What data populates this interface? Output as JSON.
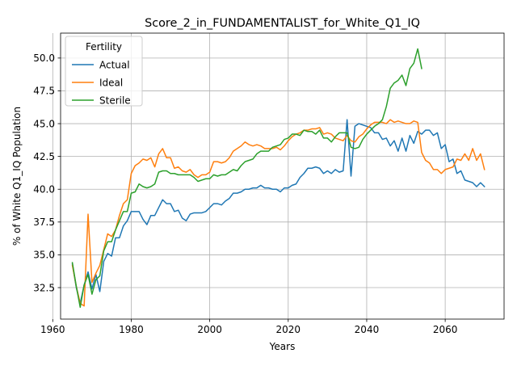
{
  "chart_data": {
    "type": "line",
    "title": "Score_2_in_FUNDAMENTALIST_for_White_Q1_IQ",
    "xlabel": "Years",
    "ylabel": "% of White Q1_IQ Population",
    "xlim": [
      1962,
      2075
    ],
    "ylim": [
      30.1,
      51.9
    ],
    "x_ticks": [
      1960,
      1980,
      2000,
      2020,
      2040,
      2060
    ],
    "y_ticks": [
      32.5,
      35.0,
      37.5,
      40.0,
      42.5,
      45.0,
      47.5,
      50.0
    ],
    "grid": true,
    "legend": {
      "title": "Fertility",
      "placement": "upper-left"
    },
    "series": [
      {
        "name": "Actual",
        "color": "#1f77b4",
        "x": [
          1965,
          1966,
          1967,
          1968,
          1969,
          1970,
          1971,
          1972,
          1973,
          1974,
          1975,
          1976,
          1977,
          1978,
          1979,
          1980,
          1981,
          1982,
          1983,
          1984,
          1985,
          1986,
          1987,
          1988,
          1989,
          1990,
          1991,
          1992,
          1993,
          1994,
          1995,
          1996,
          1997,
          1998,
          1999,
          2000,
          2001,
          2002,
          2003,
          2004,
          2005,
          2006,
          2007,
          2008,
          2009,
          2010,
          2011,
          2012,
          2013,
          2014,
          2015,
          2016,
          2017,
          2018,
          2019,
          2020,
          2021,
          2022,
          2023,
          2024,
          2025,
          2026,
          2027,
          2028,
          2029,
          2030,
          2031,
          2032,
          2033,
          2034,
          2035,
          2036,
          2037,
          2038,
          2039,
          2040,
          2041,
          2042,
          2043,
          2044,
          2045,
          2046,
          2047,
          2048,
          2049,
          2050,
          2051,
          2052,
          2053,
          2054,
          2055,
          2056,
          2057,
          2058,
          2059,
          2060,
          2061,
          2062,
          2063,
          2064,
          2065,
          2066,
          2067,
          2068,
          2069,
          2070
        ],
        "y": [
          34.3,
          32.5,
          31.3,
          32.7,
          33.7,
          32.4,
          33.5,
          32.2,
          34.5,
          35.1,
          34.9,
          36.3,
          36.3,
          37.2,
          37.6,
          38.3,
          38.3,
          38.3,
          37.7,
          37.3,
          38.0,
          38.0,
          38.6,
          39.2,
          38.9,
          38.9,
          38.3,
          38.4,
          37.8,
          37.6,
          38.1,
          38.2,
          38.2,
          38.2,
          38.3,
          38.6,
          38.9,
          38.9,
          38.8,
          39.1,
          39.3,
          39.7,
          39.7,
          39.8,
          40.0,
          40.0,
          40.1,
          40.1,
          40.3,
          40.1,
          40.1,
          40.0,
          40.0,
          39.8,
          40.1,
          40.1,
          40.3,
          40.4,
          40.9,
          41.2,
          41.6,
          41.6,
          41.7,
          41.6,
          41.2,
          41.4,
          41.2,
          41.5,
          41.3,
          41.4,
          45.3,
          41.0,
          44.8,
          45.0,
          44.9,
          44.8,
          44.7,
          44.3,
          44.3,
          43.8,
          43.9,
          43.3,
          43.7,
          42.9,
          43.9,
          42.9,
          44.1,
          43.5,
          44.4,
          44.2,
          44.5,
          44.5,
          44.1,
          44.3,
          43.1,
          43.4,
          42.1,
          42.3,
          41.2,
          41.4,
          40.7,
          40.6,
          40.5,
          40.2,
          40.5,
          40.2
        ]
      },
      {
        "name": "Ideal",
        "color": "#ff7f0e",
        "x": [
          1965,
          1966,
          1967,
          1968,
          1969,
          1970,
          1971,
          1972,
          1973,
          1974,
          1975,
          1976,
          1977,
          1978,
          1979,
          1980,
          1981,
          1982,
          1983,
          1984,
          1985,
          1986,
          1987,
          1988,
          1989,
          1990,
          1991,
          1992,
          1993,
          1994,
          1995,
          1996,
          1997,
          1998,
          1999,
          2000,
          2001,
          2002,
          2003,
          2004,
          2005,
          2006,
          2007,
          2008,
          2009,
          2010,
          2011,
          2012,
          2013,
          2014,
          2015,
          2016,
          2017,
          2018,
          2019,
          2020,
          2021,
          2022,
          2023,
          2024,
          2025,
          2026,
          2027,
          2028,
          2029,
          2030,
          2031,
          2032,
          2033,
          2034,
          2035,
          2036,
          2037,
          2038,
          2039,
          2040,
          2041,
          2042,
          2043,
          2044,
          2045,
          2046,
          2047,
          2048,
          2049,
          2050,
          2051,
          2052,
          2053,
          2054,
          2055,
          2056,
          2057,
          2058,
          2059,
          2060,
          2061,
          2062,
          2063,
          2064,
          2065,
          2066,
          2067,
          2068,
          2069,
          2070
        ],
        "y": [
          34.2,
          32.6,
          31.3,
          31.1,
          38.1,
          32.9,
          33.6,
          34.2,
          35.4,
          36.6,
          36.4,
          36.9,
          38.0,
          38.9,
          39.2,
          41.2,
          41.8,
          42.0,
          42.3,
          42.2,
          42.4,
          41.7,
          42.7,
          43.1,
          42.4,
          42.4,
          41.6,
          41.7,
          41.4,
          41.3,
          41.5,
          41.1,
          40.9,
          41.1,
          41.1,
          41.3,
          42.1,
          42.1,
          42.0,
          42.1,
          42.4,
          42.9,
          43.1,
          43.3,
          43.6,
          43.4,
          43.3,
          43.4,
          43.3,
          43.1,
          43.1,
          43.1,
          43.2,
          43.0,
          43.3,
          43.7,
          44.0,
          44.2,
          44.3,
          44.5,
          44.5,
          44.6,
          44.6,
          44.7,
          44.2,
          44.3,
          44.2,
          43.9,
          43.8,
          43.7,
          44.1,
          43.7,
          43.6,
          44.0,
          44.2,
          44.6,
          44.9,
          45.1,
          45.1,
          45.1,
          45.0,
          45.3,
          45.1,
          45.2,
          45.1,
          45.0,
          45.0,
          45.2,
          45.1,
          42.8,
          42.2,
          42.0,
          41.5,
          41.5,
          41.2,
          41.5,
          41.6,
          41.7,
          42.3,
          42.2,
          42.7,
          42.2,
          43.1,
          42.2,
          42.7,
          41.5
        ]
      },
      {
        "name": "Sterile",
        "color": "#2ca02c",
        "x": [
          1965,
          1966,
          1967,
          1968,
          1969,
          1970,
          1971,
          1972,
          1973,
          1974,
          1975,
          1976,
          1977,
          1978,
          1979,
          1980,
          1981,
          1982,
          1983,
          1984,
          1985,
          1986,
          1987,
          1988,
          1989,
          1990,
          1991,
          1992,
          1993,
          1994,
          1995,
          1996,
          1997,
          1998,
          1999,
          2000,
          2001,
          2002,
          2003,
          2004,
          2005,
          2006,
          2007,
          2008,
          2009,
          2010,
          2011,
          2012,
          2013,
          2014,
          2015,
          2016,
          2017,
          2018,
          2019,
          2020,
          2021,
          2022,
          2023,
          2024,
          2025,
          2026,
          2027,
          2028,
          2029,
          2030,
          2031,
          2032,
          2033,
          2034,
          2035,
          2036,
          2037,
          2038,
          2039,
          2040,
          2041,
          2042,
          2043,
          2044,
          2045,
          2046,
          2047,
          2048,
          2049,
          2050,
          2051,
          2052,
          2053,
          2054
        ],
        "y": [
          34.4,
          32.6,
          31.0,
          32.7,
          33.5,
          32.0,
          33.1,
          33.4,
          35.3,
          36.0,
          36.0,
          36.9,
          37.6,
          38.3,
          38.3,
          39.7,
          39.8,
          40.4,
          40.2,
          40.1,
          40.2,
          40.4,
          41.3,
          41.4,
          41.4,
          41.2,
          41.2,
          41.1,
          41.1,
          41.1,
          41.1,
          40.9,
          40.6,
          40.7,
          40.8,
          40.8,
          41.1,
          41.0,
          41.1,
          41.1,
          41.3,
          41.5,
          41.4,
          41.8,
          42.1,
          42.2,
          42.3,
          42.7,
          42.9,
          42.9,
          42.9,
          43.2,
          43.3,
          43.4,
          43.8,
          43.9,
          44.2,
          44.2,
          44.1,
          44.5,
          44.4,
          44.4,
          44.2,
          44.5,
          43.9,
          43.9,
          43.6,
          44.0,
          44.3,
          44.3,
          44.3,
          43.2,
          43.1,
          43.2,
          43.8,
          44.2,
          44.5,
          44.8,
          45.0,
          45.3,
          46.3,
          47.7,
          48.1,
          48.3,
          48.7,
          47.9,
          49.2,
          49.6,
          50.7,
          49.2
        ]
      }
    ]
  }
}
